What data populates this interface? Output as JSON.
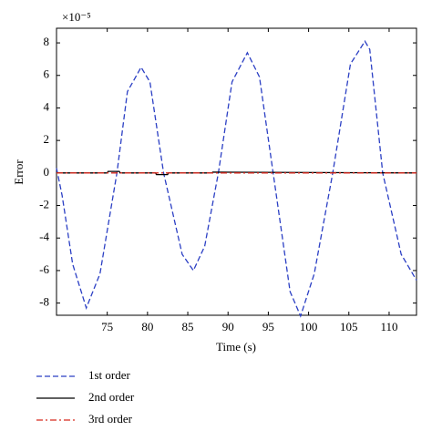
{
  "chart_data": {
    "type": "line",
    "xlabel": "Time (s)",
    "ylabel": "Error",
    "y_scale_label": "×10⁻⁵",
    "xlim": [
      68.7,
      113.4
    ],
    "ylim": [
      -8.75,
      8.9
    ],
    "xticks": [
      75,
      80,
      85,
      90,
      95,
      100,
      105,
      110
    ],
    "yticks": [
      -8,
      -6,
      -4,
      -2,
      0,
      2,
      4,
      6,
      8
    ],
    "legend": "below",
    "series": [
      {
        "name": "1st order",
        "color": "#2b3fc4",
        "dash": "dashed",
        "x": [
          68.7,
          69.4,
          70.7,
          72.4,
          74.1,
          76.2,
          77.5,
          79.2,
          80.3,
          82.0,
          84.3,
          85.7,
          87.1,
          88.8,
          90.5,
          92.4,
          93.9,
          95.6,
          97.7,
          99.0,
          100.7,
          103.0,
          105.2,
          107.0,
          107.6,
          109.2,
          111.5,
          113.4
        ],
        "values": [
          0.3,
          -1.4,
          -5.6,
          -8.3,
          -6.2,
          0,
          5.0,
          6.5,
          5.6,
          0,
          -5.0,
          -6.0,
          -4.5,
          0,
          5.6,
          7.4,
          5.9,
          0,
          -7.3,
          -8.8,
          -6.2,
          0,
          6.7,
          8.1,
          7.6,
          0,
          -5.0,
          -6.6
        ]
      },
      {
        "name": "2nd order",
        "color": "#000000",
        "dash": "solid",
        "x": [
          68.7,
          75.0,
          75.1,
          76.5,
          76.6,
          81.0,
          81.1,
          82.5,
          82.6,
          88.0,
          88.1,
          113.4
        ],
        "values": [
          0,
          0,
          0.1,
          0.1,
          0,
          0,
          -0.1,
          -0.1,
          0,
          0,
          0.05,
          0
        ]
      },
      {
        "name": "3rd order",
        "color": "#d62a1e",
        "dash": "dashdot",
        "x": [
          68.7,
          113.4
        ],
        "values": [
          0,
          0
        ]
      }
    ]
  }
}
